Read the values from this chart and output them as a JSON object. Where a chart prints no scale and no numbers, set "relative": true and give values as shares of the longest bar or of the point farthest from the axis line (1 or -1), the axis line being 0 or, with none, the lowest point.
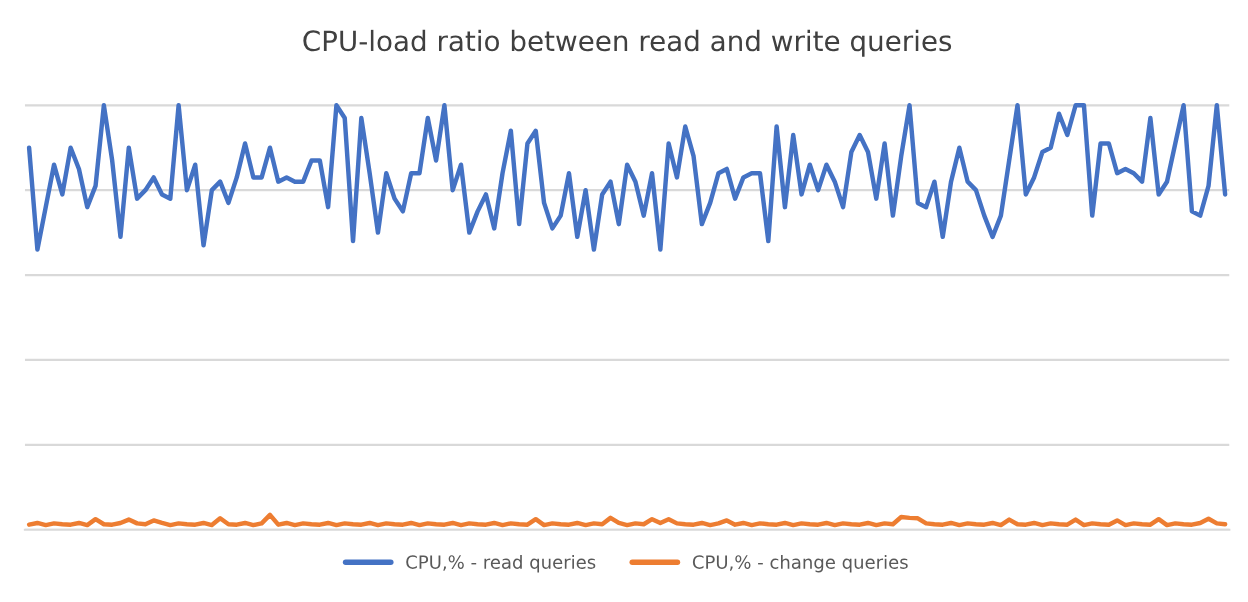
{
  "chart_data": {
    "type": "line",
    "title": "CPU-load ratio between read and write queries",
    "relative": true,
    "grid": "y",
    "legend": "bottom",
    "marker": "none",
    "line_style": "solid",
    "categories": [
      null,
      null,
      null,
      null,
      null,
      null,
      null,
      null,
      null,
      null,
      null,
      null,
      null,
      null,
      null,
      null,
      null,
      null,
      null,
      null,
      null,
      null,
      null,
      null,
      null,
      null,
      null,
      null,
      null,
      null,
      null,
      null,
      null,
      null,
      null,
      null,
      null,
      null,
      null,
      null,
      null,
      null,
      null,
      null,
      null,
      null,
      null,
      null,
      null,
      null,
      null,
      null,
      null,
      null,
      null,
      null,
      null,
      null,
      null,
      null,
      null,
      null,
      null,
      null,
      null,
      null,
      null,
      null,
      null,
      null,
      null,
      null,
      null,
      null,
      null,
      null,
      null,
      null,
      null,
      null,
      null,
      null,
      null,
      null,
      null,
      null,
      null,
      null,
      null,
      null,
      null,
      null,
      null,
      null,
      null,
      null,
      null,
      null,
      null,
      null,
      null,
      null,
      null,
      null,
      null,
      null,
      null,
      null,
      null,
      null,
      null,
      null,
      null,
      null,
      null,
      null,
      null,
      null,
      null,
      null,
      null,
      null,
      null,
      null,
      null,
      null,
      null,
      null,
      null,
      null,
      null,
      null,
      null,
      null,
      null,
      null,
      null,
      null,
      null,
      null,
      null,
      null,
      null,
      null,
      null
    ],
    "series": [
      {
        "name": "CPU,% - read queries",
        "color": "#4472c4",
        "values": [
          0.9,
          0.66,
          0.76,
          0.86,
          0.79,
          0.9,
          0.85,
          0.76,
          0.81,
          1.0,
          0.87,
          0.69,
          0.9,
          0.78,
          0.8,
          0.83,
          0.79,
          0.78,
          1.0,
          0.8,
          0.86,
          0.67,
          0.8,
          0.82,
          0.77,
          0.83,
          0.91,
          0.83,
          0.83,
          0.9,
          0.82,
          0.83,
          0.82,
          0.82,
          0.87,
          0.87,
          0.76,
          1.0,
          0.97,
          0.68,
          0.97,
          0.84,
          0.7,
          0.84,
          0.78,
          0.75,
          0.84,
          0.84,
          0.97,
          0.87,
          1.0,
          0.8,
          0.86,
          0.7,
          0.75,
          0.79,
          0.71,
          0.84,
          0.94,
          0.72,
          0.91,
          0.94,
          0.77,
          0.71,
          0.74,
          0.84,
          0.69,
          0.8,
          0.66,
          0.79,
          0.82,
          0.72,
          0.86,
          0.82,
          0.74,
          0.84,
          0.66,
          0.91,
          0.83,
          0.95,
          0.88,
          0.72,
          0.77,
          0.84,
          0.85,
          0.78,
          0.83,
          0.84,
          0.84,
          0.68,
          0.95,
          0.76,
          0.93,
          0.79,
          0.86,
          0.8,
          0.86,
          0.82,
          0.76,
          0.89,
          0.93,
          0.89,
          0.78,
          0.91,
          0.74,
          0.88,
          1.0,
          0.77,
          0.76,
          0.82,
          0.69,
          0.82,
          0.9,
          0.82,
          0.8,
          0.74,
          0.69,
          0.74,
          0.87,
          1.0,
          0.79,
          0.83,
          0.89,
          0.9,
          0.98,
          0.93,
          1.0,
          1.0,
          0.74,
          0.91,
          0.91,
          0.84,
          0.85,
          0.84,
          0.82,
          0.97,
          0.79,
          0.82,
          0.91,
          1.0,
          0.75,
          0.74,
          0.81,
          1.0,
          0.79
        ]
      },
      {
        "name": "CPU,% - change queries",
        "color": "#ed7d31",
        "values": [
          0.012,
          0.016,
          0.011,
          0.015,
          0.013,
          0.012,
          0.016,
          0.011,
          0.025,
          0.013,
          0.012,
          0.016,
          0.024,
          0.015,
          0.013,
          0.022,
          0.016,
          0.011,
          0.015,
          0.013,
          0.012,
          0.016,
          0.011,
          0.027,
          0.013,
          0.012,
          0.016,
          0.011,
          0.015,
          0.035,
          0.012,
          0.016,
          0.011,
          0.015,
          0.013,
          0.012,
          0.016,
          0.011,
          0.015,
          0.013,
          0.012,
          0.016,
          0.011,
          0.015,
          0.013,
          0.012,
          0.016,
          0.011,
          0.015,
          0.013,
          0.012,
          0.016,
          0.011,
          0.015,
          0.013,
          0.012,
          0.016,
          0.011,
          0.015,
          0.013,
          0.012,
          0.025,
          0.011,
          0.015,
          0.013,
          0.012,
          0.016,
          0.011,
          0.015,
          0.013,
          0.028,
          0.016,
          0.011,
          0.015,
          0.013,
          0.025,
          0.016,
          0.025,
          0.015,
          0.013,
          0.012,
          0.016,
          0.011,
          0.015,
          0.022,
          0.012,
          0.016,
          0.011,
          0.015,
          0.013,
          0.012,
          0.016,
          0.011,
          0.015,
          0.013,
          0.012,
          0.016,
          0.011,
          0.015,
          0.013,
          0.012,
          0.016,
          0.011,
          0.015,
          0.013,
          0.03,
          0.028,
          0.027,
          0.015,
          0.013,
          0.012,
          0.016,
          0.011,
          0.015,
          0.013,
          0.012,
          0.016,
          0.011,
          0.024,
          0.013,
          0.012,
          0.016,
          0.011,
          0.015,
          0.013,
          0.012,
          0.024,
          0.011,
          0.015,
          0.013,
          0.012,
          0.022,
          0.011,
          0.015,
          0.013,
          0.012,
          0.025,
          0.011,
          0.015,
          0.013,
          0.012,
          0.016,
          0.026,
          0.015,
          0.013
        ]
      }
    ]
  }
}
